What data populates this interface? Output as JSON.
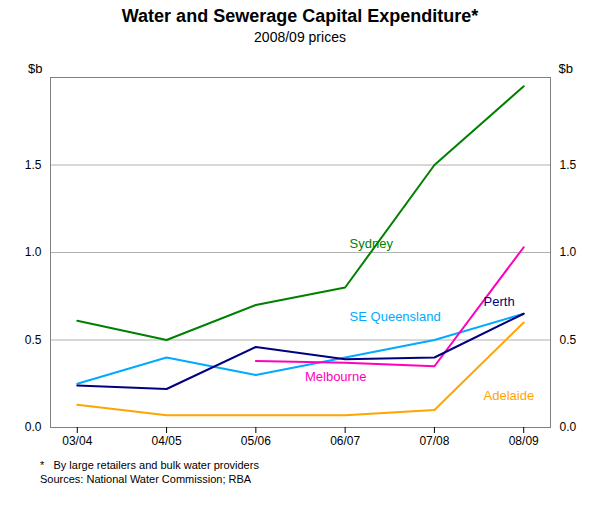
{
  "chart_data": {
    "type": "line",
    "title": "Water and Sewerage Capital Expenditure*",
    "subtitle": "2008/09 prices",
    "ylabel": "$b",
    "y2label": "$b",
    "footnotes": [
      "*   By large retailers and bulk water providers",
      "Sources: National Water Commission; RBA"
    ],
    "categories": [
      "03/04",
      "04/05",
      "05/06",
      "06/07",
      "07/08",
      "08/09"
    ],
    "series": [
      {
        "name": "Sydney",
        "color": "#008000",
        "values": [
          0.61,
          0.5,
          0.7,
          0.8,
          1.5,
          1.95
        ]
      },
      {
        "name": "SE Queensland",
        "color": "#00AAFF",
        "values": [
          0.25,
          0.4,
          0.3,
          0.4,
          0.5,
          0.65
        ]
      },
      {
        "name": "Melbourne",
        "color": "#FF00BB",
        "values": [
          null,
          null,
          0.38,
          0.37,
          0.35,
          1.03
        ]
      },
      {
        "name": "Perth",
        "color": "#000080",
        "values": [
          0.24,
          0.22,
          0.46,
          0.39,
          0.4,
          0.65
        ]
      },
      {
        "name": "Adelaide",
        "color": "#FFA500",
        "values": [
          0.13,
          0.07,
          0.07,
          0.07,
          0.1,
          0.6
        ]
      }
    ],
    "annotations": [
      {
        "text": "Sydney",
        "x": 3.05,
        "y": 1.05
      },
      {
        "text": "SE Queensland",
        "x": 3.05,
        "y": 0.63
      },
      {
        "text": "Melbourne",
        "x": 2.55,
        "y": 0.29
      },
      {
        "text": "Perth",
        "x": 4.55,
        "y": 0.72
      },
      {
        "text": "Adelaide",
        "x": 4.55,
        "y": 0.18
      }
    ],
    "ylim": [
      0.0,
      2.0
    ],
    "yticks": [
      {
        "value": 0,
        "label": "0.0"
      },
      0.5,
      {
        "value": 1,
        "label": "1.0"
      },
      1.5
    ],
    "y2lim": [
      0.0,
      2.0
    ],
    "y2ticks": [
      {
        "value": 0,
        "label": "0.0"
      },
      0.5,
      {
        "value": 1,
        "label": "1.0"
      },
      1.5
    ],
    "grid": true
  }
}
